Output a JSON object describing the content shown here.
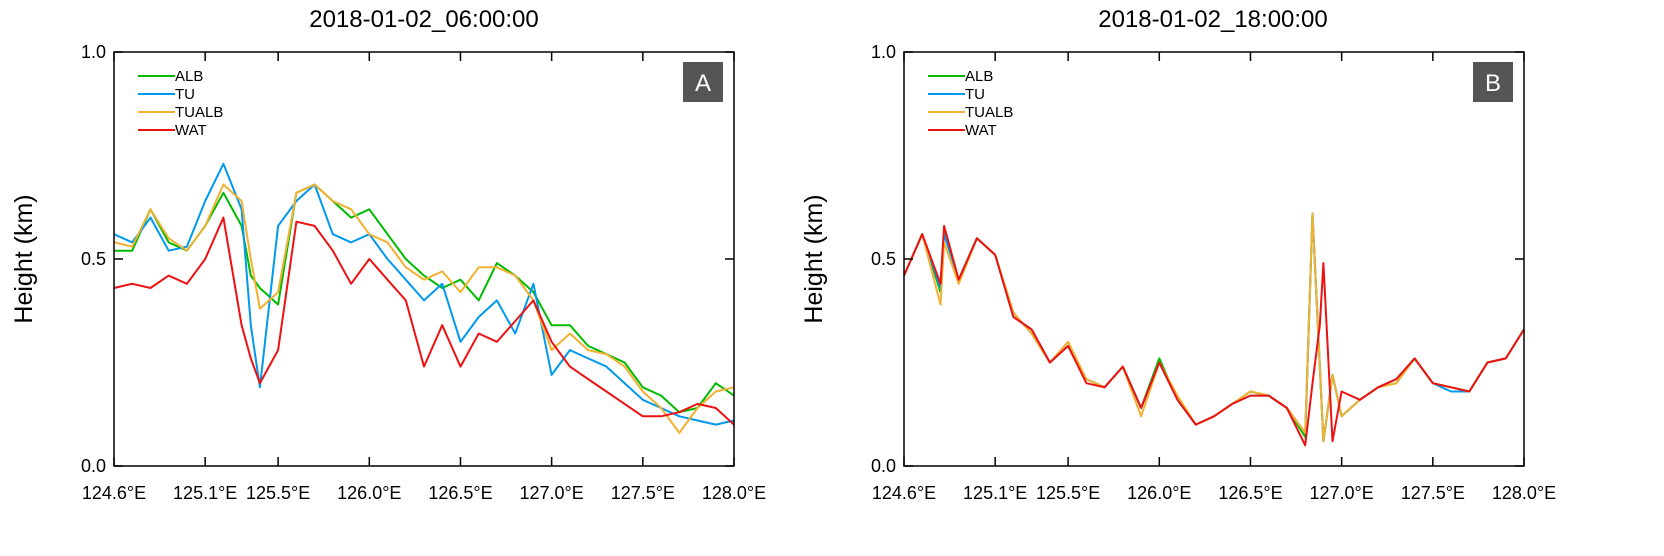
{
  "chart_data": [
    {
      "type": "line",
      "title": "2018-01-02_06:00:00",
      "panel_label": "A",
      "ylabel": "Height (km)",
      "xlabel": "",
      "xlim": [
        124.6,
        128.0
      ],
      "ylim": [
        0.0,
        1.0
      ],
      "yticks": [
        "0.0",
        "0.5",
        "1.0"
      ],
      "xticks": [
        "124.6°E",
        "125.1°E",
        "125.5°E",
        "126.0°E",
        "126.5°E",
        "127.0°E",
        "127.5°E",
        "128.0°E"
      ],
      "xtick_values": [
        124.6,
        125.1,
        125.5,
        126.0,
        126.5,
        127.0,
        127.5,
        128.0
      ],
      "legend_position": "top-left",
      "grid": false,
      "series": [
        {
          "name": "ALB",
          "color": "#00bb00",
          "x": [
            124.6,
            124.7,
            124.8,
            124.9,
            125.0,
            125.1,
            125.2,
            125.3,
            125.35,
            125.4,
            125.5,
            125.6,
            125.7,
            125.8,
            125.9,
            126.0,
            126.1,
            126.2,
            126.3,
            126.4,
            126.5,
            126.6,
            126.7,
            126.8,
            126.9,
            127.0,
            127.1,
            127.2,
            127.3,
            127.4,
            127.5,
            127.6,
            127.7,
            127.8,
            127.9,
            128.0
          ],
          "y": [
            0.52,
            0.52,
            0.62,
            0.54,
            0.52,
            0.58,
            0.66,
            0.58,
            0.46,
            0.43,
            0.39,
            0.66,
            0.68,
            0.64,
            0.6,
            0.62,
            0.56,
            0.5,
            0.46,
            0.43,
            0.45,
            0.4,
            0.49,
            0.46,
            0.42,
            0.34,
            0.34,
            0.29,
            0.27,
            0.25,
            0.19,
            0.17,
            0.13,
            0.14,
            0.2,
            0.17
          ]
        },
        {
          "name": "TU",
          "color": "#0099ee",
          "x": [
            124.6,
            124.7,
            124.8,
            124.9,
            125.0,
            125.1,
            125.2,
            125.3,
            125.35,
            125.4,
            125.5,
            125.6,
            125.7,
            125.8,
            125.9,
            126.0,
            126.1,
            126.2,
            126.3,
            126.4,
            126.5,
            126.6,
            126.7,
            126.8,
            126.9,
            127.0,
            127.1,
            127.2,
            127.3,
            127.4,
            127.5,
            127.6,
            127.7,
            127.8,
            127.9,
            128.0
          ],
          "y": [
            0.56,
            0.54,
            0.6,
            0.52,
            0.53,
            0.64,
            0.73,
            0.62,
            0.34,
            0.19,
            0.58,
            0.64,
            0.68,
            0.56,
            0.54,
            0.56,
            0.5,
            0.45,
            0.4,
            0.44,
            0.3,
            0.36,
            0.4,
            0.32,
            0.44,
            0.22,
            0.28,
            0.26,
            0.24,
            0.2,
            0.16,
            0.14,
            0.12,
            0.11,
            0.1,
            0.11
          ]
        },
        {
          "name": "TUALB",
          "color": "#f2b130",
          "x": [
            124.6,
            124.7,
            124.8,
            124.9,
            125.0,
            125.1,
            125.2,
            125.3,
            125.35,
            125.4,
            125.5,
            125.6,
            125.7,
            125.8,
            125.9,
            126.0,
            126.1,
            126.2,
            126.3,
            126.4,
            126.5,
            126.6,
            126.7,
            126.8,
            126.9,
            127.0,
            127.1,
            127.2,
            127.3,
            127.4,
            127.5,
            127.6,
            127.7,
            127.8,
            127.9,
            128.0
          ],
          "y": [
            0.54,
            0.53,
            0.62,
            0.55,
            0.52,
            0.58,
            0.68,
            0.64,
            0.5,
            0.38,
            0.42,
            0.66,
            0.68,
            0.64,
            0.62,
            0.56,
            0.54,
            0.48,
            0.45,
            0.47,
            0.42,
            0.48,
            0.48,
            0.46,
            0.4,
            0.28,
            0.32,
            0.28,
            0.27,
            0.24,
            0.18,
            0.14,
            0.08,
            0.14,
            0.18,
            0.19
          ]
        },
        {
          "name": "WAT",
          "color": "#ee1111",
          "x": [
            124.6,
            124.7,
            124.8,
            124.9,
            125.0,
            125.1,
            125.2,
            125.3,
            125.35,
            125.4,
            125.5,
            125.6,
            125.7,
            125.8,
            125.9,
            126.0,
            126.1,
            126.2,
            126.3,
            126.4,
            126.5,
            126.6,
            126.7,
            126.8,
            126.9,
            127.0,
            127.1,
            127.2,
            127.3,
            127.4,
            127.5,
            127.6,
            127.7,
            127.8,
            127.9,
            128.0
          ],
          "y": [
            0.43,
            0.44,
            0.43,
            0.46,
            0.44,
            0.5,
            0.6,
            0.34,
            0.26,
            0.2,
            0.28,
            0.59,
            0.58,
            0.52,
            0.44,
            0.5,
            0.45,
            0.4,
            0.24,
            0.34,
            0.24,
            0.32,
            0.3,
            0.35,
            0.4,
            0.3,
            0.24,
            0.21,
            0.18,
            0.15,
            0.12,
            0.12,
            0.13,
            0.15,
            0.14,
            0.1
          ]
        }
      ]
    },
    {
      "type": "line",
      "title": "2018-01-02_18:00:00",
      "panel_label": "B",
      "ylabel": "Height (km)",
      "xlabel": "",
      "xlim": [
        124.6,
        128.0
      ],
      "ylim": [
        0.0,
        1.0
      ],
      "yticks": [
        "0.0",
        "0.5",
        "1.0"
      ],
      "xticks": [
        "124.6°E",
        "125.1°E",
        "125.5°E",
        "126.0°E",
        "126.5°E",
        "127.0°E",
        "127.5°E",
        "128.0°E"
      ],
      "xtick_values": [
        124.6,
        125.1,
        125.5,
        126.0,
        126.5,
        127.0,
        127.5,
        128.0
      ],
      "legend_position": "top-left",
      "grid": false,
      "series": [
        {
          "name": "ALB",
          "color": "#00bb00",
          "x": [
            124.6,
            124.7,
            124.8,
            124.82,
            124.9,
            125.0,
            125.1,
            125.2,
            125.3,
            125.4,
            125.5,
            125.6,
            125.7,
            125.8,
            125.9,
            126.0,
            126.1,
            126.2,
            126.3,
            126.4,
            126.5,
            126.6,
            126.7,
            126.8,
            126.84,
            126.9,
            126.95,
            127.0,
            127.1,
            127.2,
            127.3,
            127.4,
            127.5,
            127.6,
            127.7,
            127.8,
            127.9,
            128.0
          ],
          "y": [
            0.46,
            0.56,
            0.42,
            0.57,
            0.45,
            0.55,
            0.51,
            0.37,
            0.32,
            0.25,
            0.29,
            0.21,
            0.19,
            0.24,
            0.14,
            0.26,
            0.16,
            0.1,
            0.12,
            0.15,
            0.18,
            0.17,
            0.14,
            0.07,
            0.61,
            0.06,
            0.22,
            0.12,
            0.16,
            0.19,
            0.2,
            0.26,
            0.2,
            0.19,
            0.18,
            0.25,
            0.26,
            0.33
          ]
        },
        {
          "name": "TU",
          "color": "#0099ee",
          "x": [
            124.6,
            124.7,
            124.8,
            124.82,
            124.9,
            125.0,
            125.1,
            125.2,
            125.3,
            125.4,
            125.5,
            125.6,
            125.7,
            125.8,
            125.9,
            126.0,
            126.1,
            126.2,
            126.3,
            126.4,
            126.5,
            126.6,
            126.7,
            126.8,
            126.84,
            126.9,
            126.95,
            127.0,
            127.1,
            127.2,
            127.3,
            127.4,
            127.5,
            127.6,
            127.7,
            127.8,
            127.9,
            128.0
          ],
          "y": [
            0.46,
            0.56,
            0.43,
            0.56,
            0.45,
            0.55,
            0.51,
            0.36,
            0.33,
            0.25,
            0.29,
            0.21,
            0.19,
            0.24,
            0.14,
            0.25,
            0.16,
            0.1,
            0.12,
            0.15,
            0.17,
            0.17,
            0.14,
            0.08,
            0.61,
            0.06,
            0.22,
            0.12,
            0.16,
            0.19,
            0.21,
            0.26,
            0.2,
            0.18,
            0.18,
            0.25,
            0.26,
            0.33
          ]
        },
        {
          "name": "TUALB",
          "color": "#f2b130",
          "x": [
            124.6,
            124.7,
            124.8,
            124.82,
            124.9,
            125.0,
            125.1,
            125.2,
            125.3,
            125.4,
            125.5,
            125.6,
            125.7,
            125.8,
            125.9,
            126.0,
            126.1,
            126.2,
            126.3,
            126.4,
            126.5,
            126.6,
            126.7,
            126.8,
            126.84,
            126.9,
            126.95,
            127.0,
            127.1,
            127.2,
            127.3,
            127.4,
            127.5,
            127.6,
            127.7,
            127.8,
            127.9,
            128.0
          ],
          "y": [
            0.46,
            0.56,
            0.39,
            0.54,
            0.44,
            0.55,
            0.51,
            0.37,
            0.32,
            0.25,
            0.3,
            0.21,
            0.19,
            0.24,
            0.12,
            0.25,
            0.17,
            0.1,
            0.12,
            0.15,
            0.18,
            0.17,
            0.14,
            0.08,
            0.61,
            0.06,
            0.22,
            0.12,
            0.16,
            0.19,
            0.2,
            0.26,
            0.2,
            0.19,
            0.18,
            0.25,
            0.26,
            0.33
          ]
        },
        {
          "name": "WAT",
          "color": "#ee1111",
          "x": [
            124.6,
            124.7,
            124.8,
            124.82,
            124.9,
            125.0,
            125.1,
            125.2,
            125.3,
            125.4,
            125.5,
            125.6,
            125.7,
            125.8,
            125.9,
            126.0,
            126.1,
            126.2,
            126.3,
            126.4,
            126.5,
            126.6,
            126.7,
            126.8,
            126.84,
            126.88,
            126.9,
            126.95,
            127.0,
            127.1,
            127.2,
            127.3,
            127.4,
            127.5,
            127.6,
            127.7,
            127.8,
            127.9,
            128.0
          ],
          "y": [
            0.46,
            0.56,
            0.44,
            0.58,
            0.45,
            0.55,
            0.51,
            0.36,
            0.33,
            0.25,
            0.29,
            0.2,
            0.19,
            0.24,
            0.14,
            0.25,
            0.16,
            0.1,
            0.12,
            0.15,
            0.17,
            0.17,
            0.14,
            0.05,
            0.2,
            0.34,
            0.49,
            0.06,
            0.18,
            0.16,
            0.19,
            0.21,
            0.26,
            0.2,
            0.19,
            0.18,
            0.25,
            0.26,
            0.33
          ]
        }
      ]
    }
  ]
}
